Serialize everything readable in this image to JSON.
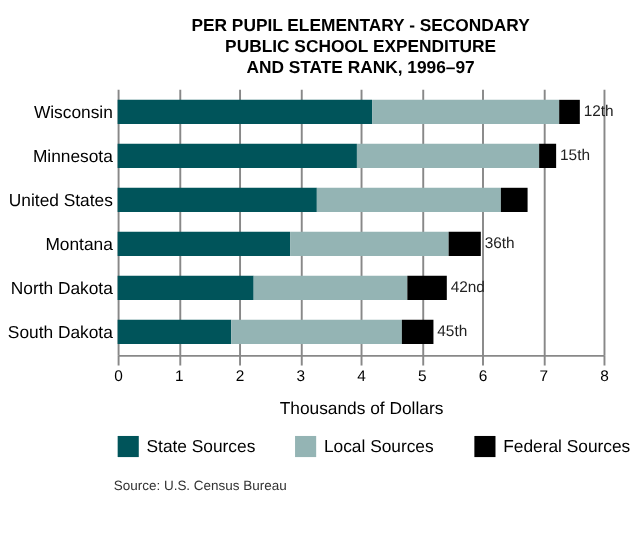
{
  "chart_data": {
    "type": "bar",
    "orientation": "horizontal",
    "stacked": true,
    "title": [
      "PER PUPIL ELEMENTARY - SECONDARY",
      "PUBLIC SCHOOL EXPENDITURE",
      "AND STATE RANK, 1996–97"
    ],
    "categories": [
      "Wisconsin",
      "Minnesota",
      "United States",
      "Montana",
      "North Dakota",
      "South Dakota"
    ],
    "series": [
      {
        "name": "State Sources",
        "color": "#00545a",
        "values": [
          4.19,
          3.94,
          3.28,
          2.84,
          2.24,
          1.87
        ]
      },
      {
        "name": "Local Sources",
        "color": "#94b4b4",
        "values": [
          3.08,
          3.0,
          3.03,
          2.61,
          2.53,
          2.81
        ]
      },
      {
        "name": "Federal Sources",
        "color": "#000000",
        "values": [
          0.34,
          0.28,
          0.44,
          0.53,
          0.65,
          0.52
        ]
      }
    ],
    "xlim": [
      0,
      8
    ],
    "xticks": [
      0,
      1,
      2,
      3,
      4,
      5,
      6,
      7,
      8
    ],
    "xlabel": "Thousands of Dollars",
    "grid": "x",
    "legend": "bottom",
    "annotations": [
      {
        "text": "12th",
        "x": 7.61,
        "y": "Wisconsin"
      },
      {
        "text": "15th",
        "x": 7.22,
        "y": "Minnesota"
      },
      {
        "text": "36th",
        "x": 5.98,
        "y": "Montana"
      },
      {
        "text": "42nd",
        "x": 5.42,
        "y": "North Dakota"
      },
      {
        "text": "45th",
        "x": 5.2,
        "y": "South Dakota"
      },
      "Source: U.S. Census Bureau"
    ]
  }
}
